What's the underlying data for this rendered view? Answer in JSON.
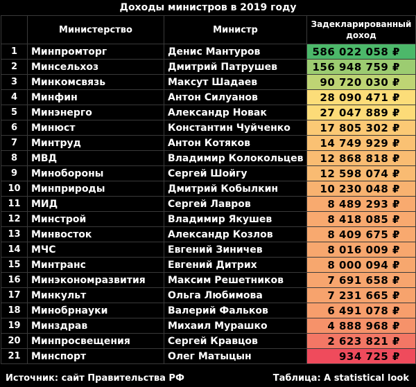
{
  "title": "Доходы министров в 2019 году",
  "headers": {
    "number": "",
    "ministry": "Министерство",
    "minister": "Министр",
    "income": "Задекларированный доход"
  },
  "colors": {
    "high": "#4cb86a",
    "mid": "#fde37a",
    "low": "#ef4b5c"
  },
  "rows": [
    {
      "n": "1",
      "ministry": "Минпромторг",
      "minister": "Денис Мантуров",
      "income": "586 022 058 ₽",
      "value": 586022058
    },
    {
      "n": "2",
      "ministry": "Минсельхоз",
      "minister": "Дмитрий Патрушев",
      "income": "156 948 759 ₽",
      "value": 156948759
    },
    {
      "n": "3",
      "ministry": "Минкомсвязь",
      "minister": "Максут Шадаев",
      "income": "90 720 030 ₽",
      "value": 90720030
    },
    {
      "n": "4",
      "ministry": "Минфин",
      "minister": "Антон Силуанов",
      "income": "28 090 471 ₽",
      "value": 28090471
    },
    {
      "n": "5",
      "ministry": "Минэнерго",
      "minister": "Александр Новак",
      "income": "27 047 889 ₽",
      "value": 27047889
    },
    {
      "n": "6",
      "ministry": "Минюст",
      "minister": "Константин Чуйченко",
      "income": "17 805 302 ₽",
      "value": 17805302
    },
    {
      "n": "7",
      "ministry": "Минтруд",
      "minister": "Антон Котяков",
      "income": "14 749 929 ₽",
      "value": 14749929
    },
    {
      "n": "8",
      "ministry": "МВД",
      "minister": "Владимир Колокольцев",
      "income": "12 868 818 ₽",
      "value": 12868818
    },
    {
      "n": "9",
      "ministry": "Минобороны",
      "minister": "Сергей Шойгу",
      "income": "12 598 074 ₽",
      "value": 12598074
    },
    {
      "n": "10",
      "ministry": "Минприроды",
      "minister": "Дмитрий Кобылкин",
      "income": "10 230 048 ₽",
      "value": 10230048
    },
    {
      "n": "11",
      "ministry": "МИД",
      "minister": "Сергей Лавров",
      "income": "8 489 293 ₽",
      "value": 8489293
    },
    {
      "n": "12",
      "ministry": "Минстрой",
      "minister": "Владимир Якушев",
      "income": "8 418 085 ₽",
      "value": 8418085
    },
    {
      "n": "13",
      "ministry": "Минвосток",
      "minister": "Александр Козлов",
      "income": "8 409 675 ₽",
      "value": 8409675
    },
    {
      "n": "14",
      "ministry": "МЧС",
      "minister": "Евгений Зиничев",
      "income": "8 016 009 ₽",
      "value": 8016009
    },
    {
      "n": "15",
      "ministry": "Минтранс",
      "minister": "Евгений Дитрих",
      "income": "8 000 094 ₽",
      "value": 8000094
    },
    {
      "n": "16",
      "ministry": "Минэкономразвития",
      "minister": "Максим Решетников",
      "income": "7 691 658 ₽",
      "value": 7691658
    },
    {
      "n": "17",
      "ministry": "Минкульт",
      "minister": "Ольга Любимова",
      "income": "7 231 665 ₽",
      "value": 7231665
    },
    {
      "n": "18",
      "ministry": "Минобрнауки",
      "minister": "Валерий Фальков",
      "income": "6 491 078 ₽",
      "value": 6491078
    },
    {
      "n": "19",
      "ministry": "Минздрав",
      "minister": "Михаил Мурашко",
      "income": "4 888 968 ₽",
      "value": 4888968
    },
    {
      "n": "20",
      "ministry": "Минпросвещения",
      "minister": "Сергей Кравцов",
      "income": "2 623 821 ₽",
      "value": 2623821
    },
    {
      "n": "21",
      "ministry": "Минспорт",
      "minister": "Олег Матыцын",
      "income": "934 725 ₽",
      "value": 934725
    }
  ],
  "footer": {
    "source": "Источник: сайт Правительства РФ",
    "credit": "Таблица: A statistical look"
  }
}
